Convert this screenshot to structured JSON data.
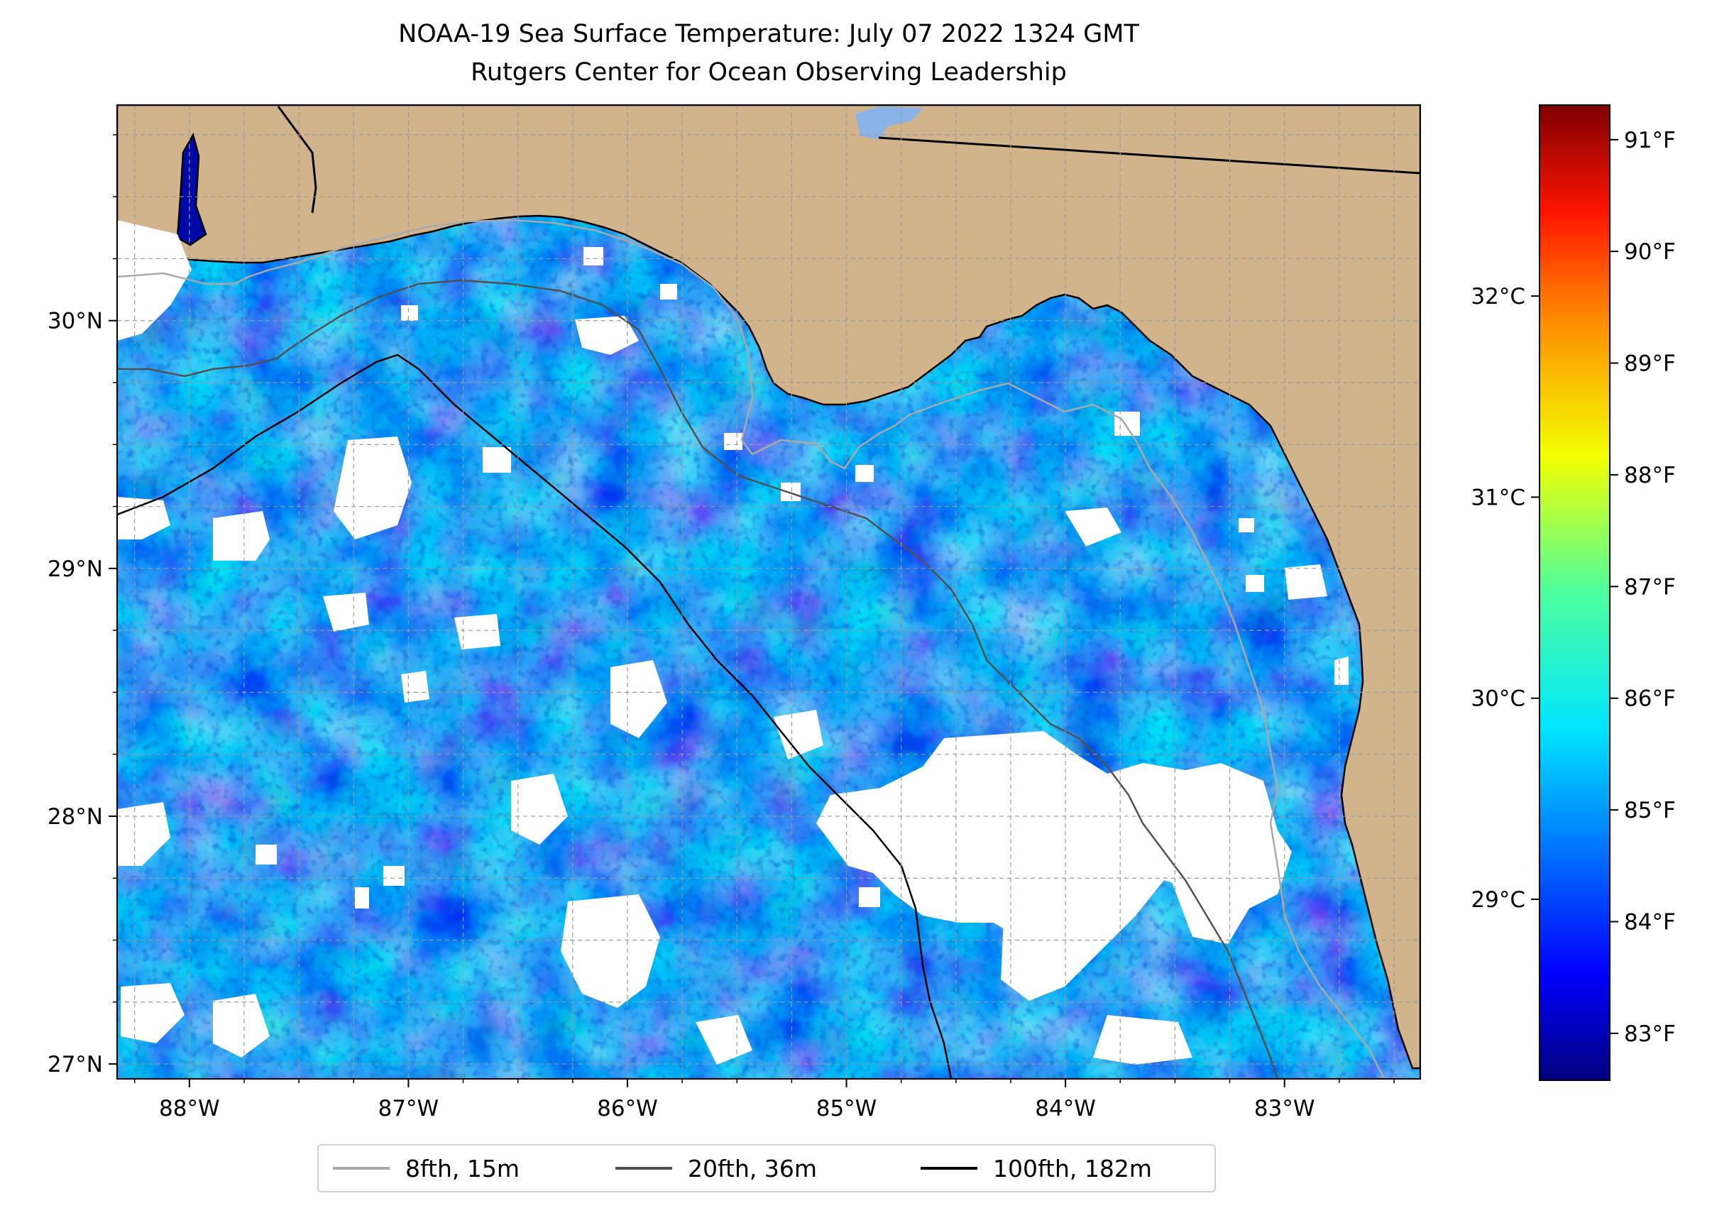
{
  "title": "NOAA-19 Sea Surface Temperature: July 07 2022 1324 GMT",
  "subtitle": "Rutgers Center for Ocean Observing Leadership",
  "map": {
    "extent": {
      "lon_min": -88.33,
      "lon_max": -82.38,
      "lat_min": 26.94,
      "lat_max": 30.87
    },
    "lon_ticks": [
      {
        "value": -88,
        "label": "88°W"
      },
      {
        "value": -87,
        "label": "87°W"
      },
      {
        "value": -86,
        "label": "86°W"
      },
      {
        "value": -85,
        "label": "85°W"
      },
      {
        "value": -84,
        "label": "84°W"
      },
      {
        "value": -83,
        "label": "83°W"
      }
    ],
    "lat_ticks": [
      {
        "value": 27,
        "label": "27°N"
      },
      {
        "value": 28,
        "label": "28°N"
      },
      {
        "value": 29,
        "label": "29°N"
      },
      {
        "value": 30,
        "label": "30°N"
      }
    ],
    "gridlines": true,
    "land_color": "#d2b48c",
    "no_data_color": "#ffffff"
  },
  "colorbar": {
    "colormap": "jet",
    "celsius_ticks": [
      {
        "value": 29,
        "label": "29°C"
      },
      {
        "value": 30,
        "label": "30°C"
      },
      {
        "value": 31,
        "label": "31°C"
      },
      {
        "value": 32,
        "label": "32°C"
      }
    ],
    "fahrenheit_ticks": [
      {
        "value": 83,
        "label": "83°F"
      },
      {
        "value": 84,
        "label": "84°F"
      },
      {
        "value": 85,
        "label": "85°F"
      },
      {
        "value": 86,
        "label": "86°F"
      },
      {
        "value": 87,
        "label": "87°F"
      },
      {
        "value": 88,
        "label": "88°F"
      },
      {
        "value": 89,
        "label": "89°F"
      },
      {
        "value": 90,
        "label": "90°F"
      },
      {
        "value": 91,
        "label": "91°F"
      }
    ]
  },
  "legend": {
    "placement": "bottom-center",
    "items": [
      {
        "label": "8fth, 15m",
        "color": "#a9a9a9"
      },
      {
        "label": "20fth, 36m",
        "color": "#505050"
      },
      {
        "label": "100fth, 182m",
        "color": "#000000"
      }
    ]
  }
}
